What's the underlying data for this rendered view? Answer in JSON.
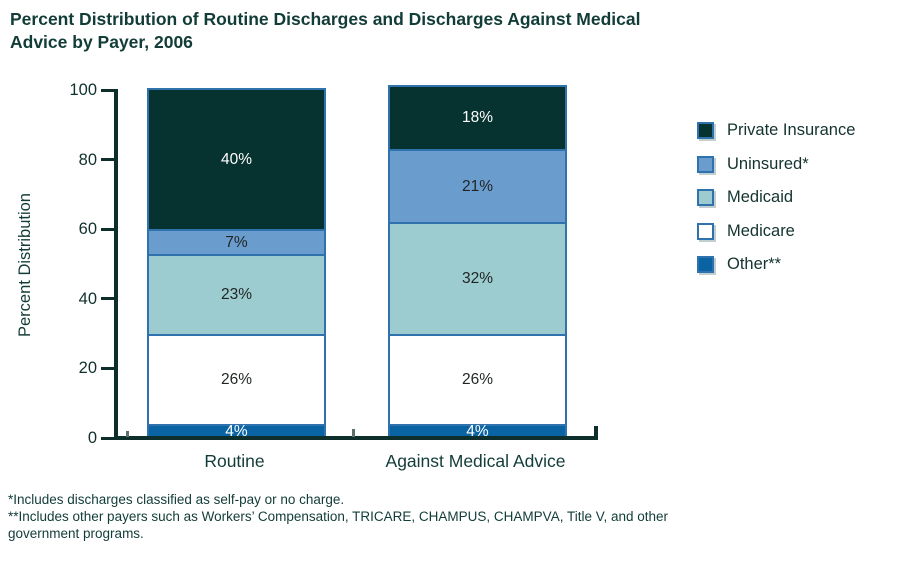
{
  "title": "Percent Distribution of Routine Discharges and Discharges Against Medical Advice by Payer, 2006",
  "chart_data": {
    "type": "bar",
    "stacked": true,
    "title": "Percent Distribution of Routine Discharges and Discharges Against Medical Advice by Payer, 2006",
    "categories": [
      "Routine",
      "Against Medical Advice"
    ],
    "series": [
      {
        "name": "Other**",
        "values": [
          4,
          4
        ],
        "color": "#0a64a4",
        "label_color": "#ffffff"
      },
      {
        "name": "Medicare",
        "values": [
          26,
          26
        ],
        "color": "#ffffff",
        "label_color": "#1f2523"
      },
      {
        "name": "Medicaid",
        "values": [
          23,
          32
        ],
        "color": "#9ccccf",
        "label_color": "#1f2523"
      },
      {
        "name": "Uninsured*",
        "values": [
          7,
          21
        ],
        "color": "#6b9cce",
        "label_color": "#1f2523"
      },
      {
        "name": "Private Insurance",
        "values": [
          40,
          18
        ],
        "color": "#06332f",
        "label_color": "#ffffff"
      }
    ],
    "value_suffix": "%",
    "xlabel": "",
    "ylabel": "Percent Distribution",
    "yticks": [
      0,
      20,
      40,
      60,
      80,
      100
    ],
    "ylim": [
      0,
      100
    ],
    "grid": false,
    "legend_position": "right",
    "legend_order_top_to_bottom": [
      "Private Insurance",
      "Uninsured*",
      "Medicaid",
      "Medicare",
      "Other**"
    ]
  },
  "footnotes": [
    "*Includes discharges classified as self-pay or no charge.",
    "**Includes other payers such as Workers’ Compensation, TRICARE, CHAMPUS, CHAMPVA, Title V, and other government programs."
  ],
  "colors": {
    "segment_border": "#2f72ad",
    "axis": "#0d2e2b",
    "title_text": "#123c37",
    "tick_text": "#10302c",
    "swatch_shadow": "#c3ced0",
    "minor_tick": "#5f6f6d"
  }
}
